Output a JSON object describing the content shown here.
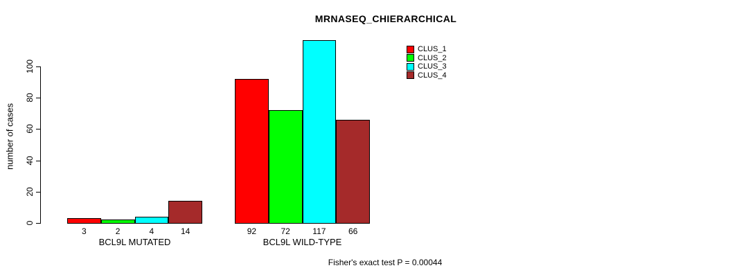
{
  "title": "MRNASEQ_CHIERARCHICAL",
  "footnote": "Fisher's exact test P = 0.00044",
  "chart_data": {
    "type": "bar",
    "categories": [
      "BCL9L MUTATED",
      "BCL9L WILD-TYPE"
    ],
    "series": [
      {
        "name": "CLUS_1",
        "color": "#FF0000",
        "values": [
          3,
          92
        ]
      },
      {
        "name": "CLUS_2",
        "color": "#00FF00",
        "values": [
          2,
          72
        ]
      },
      {
        "name": "CLUS_3",
        "color": "#00FFFF",
        "values": [
          4,
          117
        ]
      },
      {
        "name": "CLUS_4",
        "color": "#A52A2A",
        "values": [
          14,
          66
        ]
      }
    ],
    "ylabel": "number of cases",
    "yticks": [
      0,
      20,
      40,
      60,
      80,
      100
    ],
    "ylim": [
      0,
      117
    ],
    "bar_value_labels": true,
    "legend_position": "top-right",
    "grid": false
  }
}
